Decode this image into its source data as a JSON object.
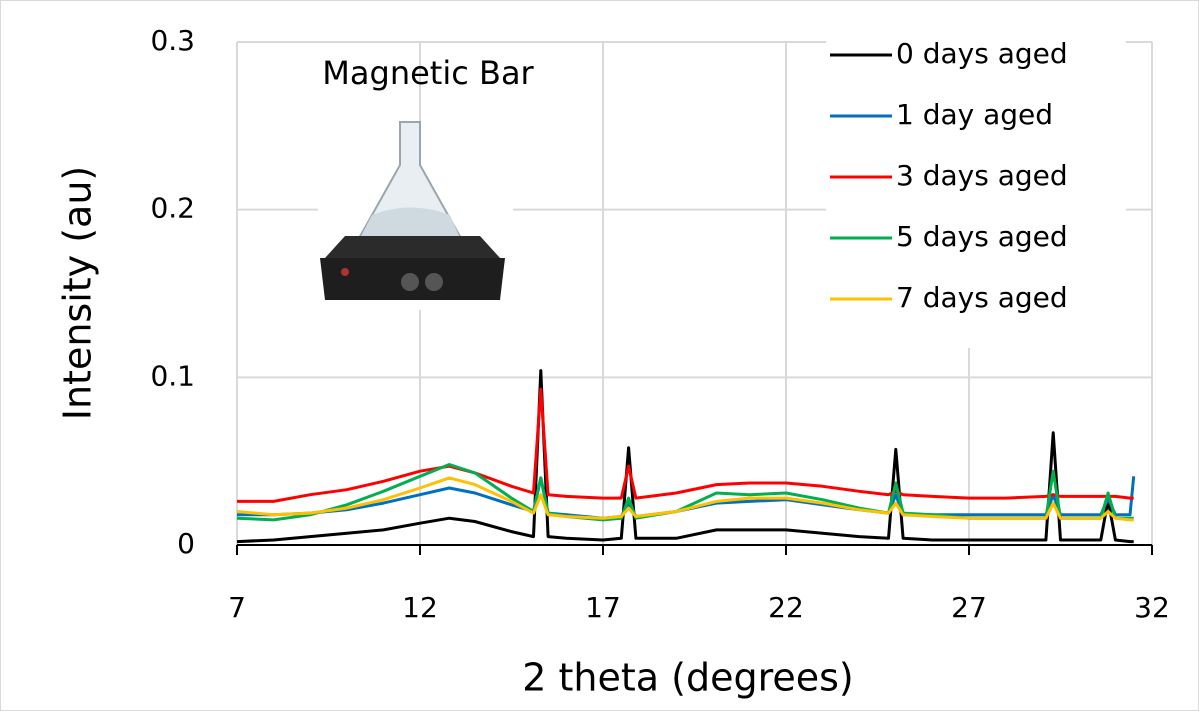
{
  "chart_data": {
    "type": "line",
    "annotation": "Magnetic Bar",
    "x_label": "2 theta (degrees)",
    "y_label": "Intensity (au)",
    "xlim": [
      7,
      32
    ],
    "xticks": [
      7,
      12,
      17,
      22,
      27,
      32
    ],
    "ylim": [
      0,
      0.3
    ],
    "yticks": [
      0,
      0.1,
      0.2,
      0.3
    ],
    "grid": true,
    "legend": "top-right",
    "x": [
      7,
      8,
      9,
      10,
      11,
      12,
      12.8,
      13.5,
      14.5,
      15.1,
      15.3,
      15.5,
      16,
      17,
      17.5,
      17.7,
      17.9,
      19,
      20.1,
      21,
      22,
      23,
      24,
      24.8,
      25.0,
      25.2,
      26,
      27,
      28,
      29.1,
      29.3,
      29.5,
      30.6,
      30.8,
      31.0,
      31.4,
      31.5
    ],
    "series": [
      {
        "name": "0 days aged",
        "color": "#000000",
        "values": [
          0.002,
          0.003,
          0.005,
          0.007,
          0.009,
          0.013,
          0.016,
          0.014,
          0.008,
          0.005,
          0.104,
          0.005,
          0.004,
          0.003,
          0.004,
          0.058,
          0.004,
          0.004,
          0.009,
          0.009,
          0.009,
          0.007,
          0.005,
          0.004,
          0.057,
          0.004,
          0.003,
          0.003,
          0.003,
          0.003,
          0.067,
          0.003,
          0.003,
          0.027,
          0.003,
          0.002,
          0.002
        ]
      },
      {
        "name": "1 day aged",
        "color": "#0070c0",
        "values": [
          0.018,
          0.018,
          0.019,
          0.021,
          0.025,
          0.03,
          0.034,
          0.031,
          0.024,
          0.02,
          0.04,
          0.019,
          0.018,
          0.016,
          0.017,
          0.025,
          0.017,
          0.02,
          0.025,
          0.026,
          0.027,
          0.024,
          0.021,
          0.019,
          0.03,
          0.018,
          0.018,
          0.018,
          0.018,
          0.018,
          0.03,
          0.018,
          0.018,
          0.028,
          0.018,
          0.018,
          0.041
        ]
      },
      {
        "name": "3 days aged",
        "color": "#ff0000",
        "values": [
          0.026,
          0.026,
          0.03,
          0.033,
          0.038,
          0.044,
          0.047,
          0.043,
          0.035,
          0.031,
          0.093,
          0.03,
          0.029,
          0.028,
          0.028,
          0.047,
          0.028,
          0.031,
          0.036,
          0.037,
          0.037,
          0.035,
          0.032,
          0.03,
          0.032,
          0.03,
          0.029,
          0.028,
          0.028,
          0.029,
          0.03,
          0.029,
          0.029,
          0.029,
          0.029,
          0.028,
          0.028
        ]
      },
      {
        "name": "5 days aged",
        "color": "#00b050",
        "values": [
          0.016,
          0.015,
          0.018,
          0.024,
          0.032,
          0.041,
          0.048,
          0.043,
          0.028,
          0.02,
          0.04,
          0.019,
          0.017,
          0.015,
          0.016,
          0.028,
          0.016,
          0.02,
          0.031,
          0.03,
          0.031,
          0.027,
          0.022,
          0.019,
          0.037,
          0.019,
          0.018,
          0.016,
          0.016,
          0.016,
          0.044,
          0.016,
          0.016,
          0.031,
          0.016,
          0.016,
          0.016
        ]
      },
      {
        "name": "7 days aged",
        "color": "#ffc000",
        "values": [
          0.02,
          0.018,
          0.019,
          0.022,
          0.027,
          0.034,
          0.04,
          0.036,
          0.026,
          0.019,
          0.03,
          0.018,
          0.017,
          0.016,
          0.017,
          0.022,
          0.017,
          0.02,
          0.026,
          0.028,
          0.028,
          0.025,
          0.021,
          0.019,
          0.025,
          0.018,
          0.017,
          0.016,
          0.016,
          0.016,
          0.025,
          0.016,
          0.016,
          0.02,
          0.016,
          0.015,
          0.015
        ]
      }
    ]
  }
}
